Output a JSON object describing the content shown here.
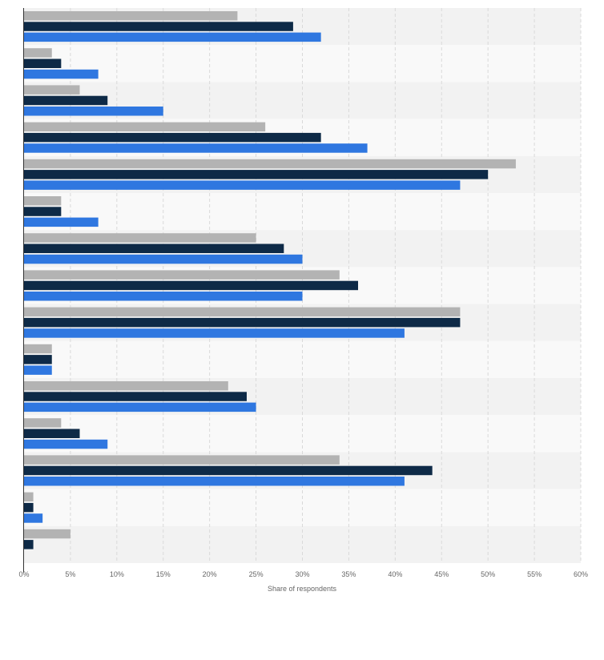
{
  "chart_data": {
    "type": "bar",
    "orientation": "horizontal",
    "xlabel": "Share of respondents",
    "xlim": [
      0,
      60
    ],
    "x_ticks": [
      "0%",
      "5%",
      "10%",
      "15%",
      "20%",
      "25%",
      "30%",
      "35%",
      "40%",
      "45%",
      "50%",
      "55%",
      "60%"
    ],
    "grid": "vertical dashed",
    "category_labels_visible": false,
    "series": [
      {
        "color": "#b3b3b3",
        "values": [
          23,
          3,
          6,
          26,
          53,
          4,
          25,
          34,
          47,
          3,
          22,
          4,
          34,
          1,
          5
        ]
      },
      {
        "color": "#0e2a47",
        "values": [
          29,
          4,
          9,
          32,
          50,
          4,
          28,
          36,
          47,
          3,
          24,
          6,
          44,
          1,
          1
        ]
      },
      {
        "color": "#2f77e0",
        "values": [
          32,
          8,
          15,
          37,
          47,
          8,
          30,
          30,
          41,
          3,
          25,
          9,
          41,
          2,
          0
        ]
      }
    ]
  }
}
